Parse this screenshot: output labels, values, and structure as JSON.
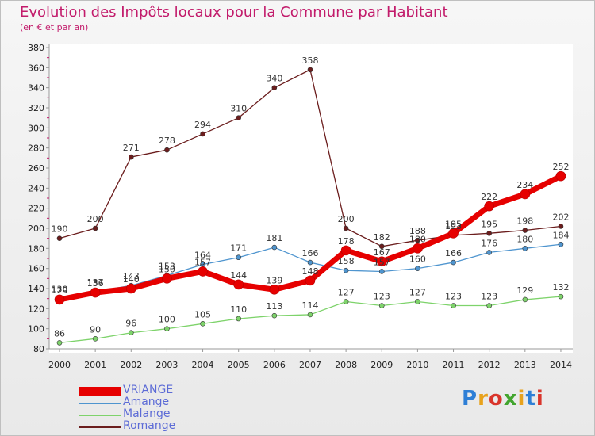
{
  "header": {
    "title": "Evolution des Impôts locaux pour la Commune par Habitant",
    "subtitle": "(en € et par an)"
  },
  "logo": {
    "text": "Proxiti"
  },
  "chart_data": {
    "type": "line",
    "title": "Evolution des Impôts locaux pour la Commune par Habitant",
    "subtitle": "(en € et par an)",
    "xlabel": "",
    "ylabel": "",
    "ylim": [
      80,
      380
    ],
    "yticks": [
      80,
      100,
      120,
      140,
      160,
      180,
      200,
      220,
      240,
      260,
      280,
      300,
      320,
      340,
      360,
      380
    ],
    "grid": false,
    "legend": "bottom-left",
    "categories": [
      "2000",
      "2001",
      "2002",
      "2003",
      "2004",
      "2005",
      "2006",
      "2007",
      "2008",
      "2009",
      "2010",
      "2011",
      "2012",
      "2013",
      "2014"
    ],
    "series": [
      {
        "name": "VRIANGE",
        "color": "#e60000",
        "values": [
          129,
          136,
          140,
          150,
          157,
          144,
          139,
          148,
          178,
          167,
          180,
          195,
          222,
          234,
          252
        ]
      },
      {
        "name": "Amange",
        "color": "#4f95cf",
        "values": [
          130,
          137,
          143,
          153,
          164,
          171,
          181,
          166,
          158,
          157,
          160,
          166,
          176,
          180,
          184
        ]
      },
      {
        "name": "Malange",
        "color": "#7ed36b",
        "values": [
          86,
          90,
          96,
          100,
          105,
          110,
          113,
          114,
          127,
          123,
          127,
          123,
          123,
          129,
          132
        ]
      },
      {
        "name": "Romange",
        "color": "#6b1d1d",
        "values": [
          190,
          200,
          271,
          278,
          294,
          310,
          340,
          358,
          200,
          182,
          188,
          193,
          195,
          198,
          202
        ]
      }
    ]
  }
}
